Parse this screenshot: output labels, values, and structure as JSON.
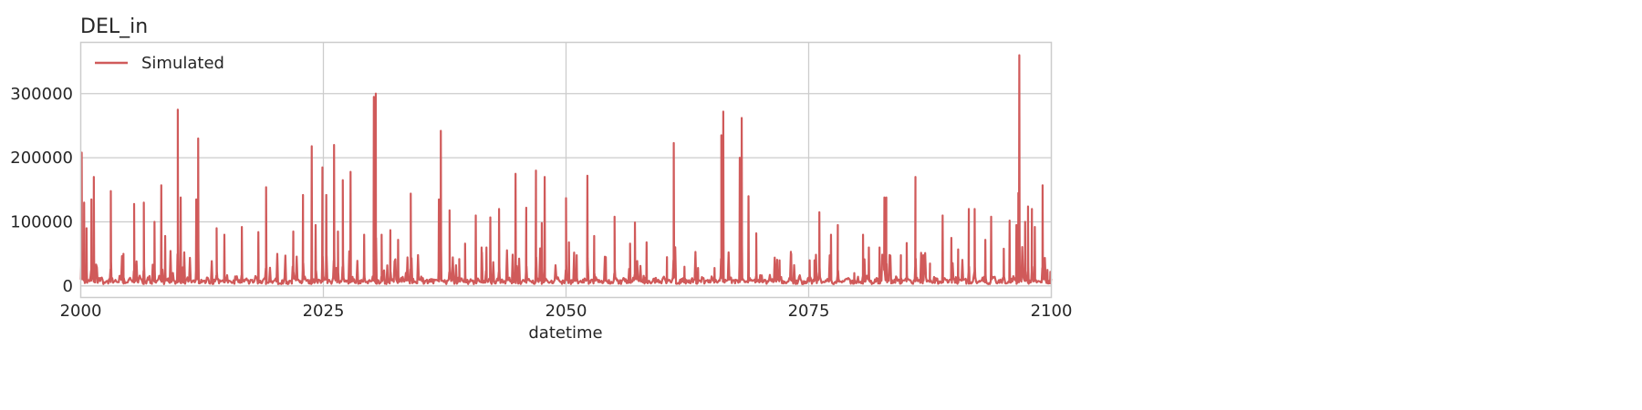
{
  "chart_data": {
    "type": "line",
    "title": "DEL_in",
    "xlabel": "datetime",
    "ylabel": "",
    "xlim": [
      2000,
      2100
    ],
    "ylim": [
      -18000,
      380000
    ],
    "xticks": [
      2000,
      2025,
      2050,
      2075,
      2100
    ],
    "xtick_labels": [
      "2000",
      "2025",
      "2050",
      "2075",
      "2100"
    ],
    "yticks": [
      0,
      100000,
      200000,
      300000
    ],
    "ytick_labels": [
      "0",
      "100000",
      "200000",
      "300000"
    ],
    "grid": true,
    "legend_position": "top-left",
    "series_color": "#d05a5a",
    "series": [
      {
        "name": "Simulated",
        "baseline": 8000,
        "peaks": [
          [
            2000.1,
            208000
          ],
          [
            2000.35,
            130000
          ],
          [
            2000.6,
            90000
          ],
          [
            2001.1,
            135000
          ],
          [
            2001.35,
            170000
          ],
          [
            2003.1,
            148000
          ],
          [
            2004.4,
            50000
          ],
          [
            2005.5,
            128000
          ],
          [
            2006.5,
            130000
          ],
          [
            2007.6,
            100000
          ],
          [
            2008.3,
            157000
          ],
          [
            2008.7,
            78000
          ],
          [
            2010.0,
            275000
          ],
          [
            2010.3,
            138000
          ],
          [
            2011.9,
            135000
          ],
          [
            2012.1,
            230000
          ],
          [
            2014.0,
            90000
          ],
          [
            2014.8,
            80000
          ],
          [
            2016.6,
            92000
          ],
          [
            2018.3,
            84000
          ],
          [
            2019.1,
            154000
          ],
          [
            2021.9,
            85000
          ],
          [
            2022.9,
            142000
          ],
          [
            2023.8,
            218000
          ],
          [
            2024.2,
            95000
          ],
          [
            2024.9,
            185000
          ],
          [
            2025.3,
            142000
          ],
          [
            2026.1,
            220000
          ],
          [
            2026.5,
            85000
          ],
          [
            2027.0,
            165000
          ],
          [
            2027.8,
            178000
          ],
          [
            2029.2,
            80000
          ],
          [
            2030.2,
            295000
          ],
          [
            2030.4,
            300000
          ],
          [
            2031.0,
            80000
          ],
          [
            2031.9,
            87000
          ],
          [
            2032.7,
            72000
          ],
          [
            2034.0,
            144000
          ],
          [
            2036.9,
            135000
          ],
          [
            2037.1,
            242000
          ],
          [
            2038.0,
            118000
          ],
          [
            2039.0,
            42000
          ],
          [
            2039.6,
            66000
          ],
          [
            2040.7,
            110000
          ],
          [
            2041.3,
            60000
          ],
          [
            2041.8,
            60000
          ],
          [
            2042.2,
            107000
          ],
          [
            2043.1,
            120000
          ],
          [
            2044.8,
            175000
          ],
          [
            2045.9,
            122000
          ],
          [
            2046.9,
            180000
          ],
          [
            2047.5,
            98000
          ],
          [
            2047.8,
            170000
          ],
          [
            2050.0,
            137000
          ],
          [
            2050.3,
            68000
          ],
          [
            2051.1,
            48000
          ],
          [
            2052.2,
            172000
          ],
          [
            2052.9,
            78000
          ],
          [
            2054.1,
            45000
          ],
          [
            2055.0,
            108000
          ],
          [
            2056.6,
            66000
          ],
          [
            2057.1,
            99000
          ],
          [
            2058.3,
            68000
          ],
          [
            2060.4,
            45000
          ],
          [
            2061.1,
            223000
          ],
          [
            2062.2,
            30000
          ],
          [
            2063.6,
            28000
          ],
          [
            2065.3,
            28000
          ],
          [
            2066.0,
            235000
          ],
          [
            2066.2,
            272000
          ],
          [
            2067.9,
            200000
          ],
          [
            2068.1,
            262000
          ],
          [
            2068.8,
            140000
          ],
          [
            2069.6,
            82000
          ],
          [
            2072.0,
            40000
          ],
          [
            2073.2,
            50000
          ],
          [
            2075.1,
            40000
          ],
          [
            2075.6,
            40000
          ],
          [
            2076.1,
            115000
          ],
          [
            2077.3,
            80000
          ],
          [
            2078.0,
            95000
          ],
          [
            2079.7,
            20000
          ],
          [
            2080.6,
            80000
          ],
          [
            2081.2,
            60000
          ],
          [
            2082.3,
            60000
          ],
          [
            2082.8,
            138000
          ],
          [
            2083.0,
            138000
          ],
          [
            2084.5,
            48000
          ],
          [
            2085.1,
            67000
          ],
          [
            2086.0,
            170000
          ],
          [
            2086.8,
            48000
          ],
          [
            2087.5,
            35000
          ],
          [
            2088.8,
            110000
          ],
          [
            2089.7,
            75000
          ],
          [
            2090.4,
            57000
          ],
          [
            2091.5,
            120000
          ],
          [
            2092.1,
            120000
          ],
          [
            2093.2,
            72000
          ],
          [
            2093.8,
            108000
          ],
          [
            2095.1,
            58000
          ],
          [
            2095.7,
            102000
          ],
          [
            2096.4,
            95000
          ],
          [
            2096.6,
            145000
          ],
          [
            2096.7,
            360000
          ],
          [
            2097.3,
            100000
          ],
          [
            2097.6,
            124000
          ],
          [
            2098.0,
            120000
          ],
          [
            2098.3,
            92000
          ],
          [
            2099.1,
            157000
          ],
          [
            2099.6,
            25000
          ],
          [
            2099.9,
            22000
          ]
        ]
      }
    ]
  }
}
